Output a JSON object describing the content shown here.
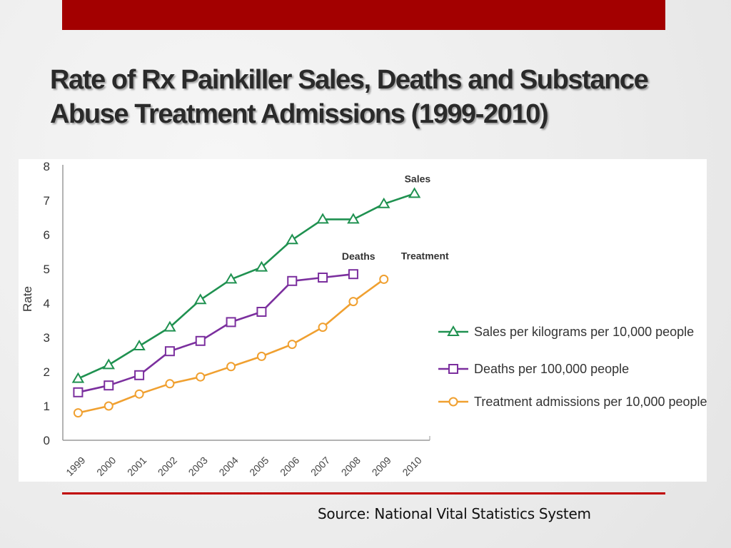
{
  "slide": {
    "title_line1": "Rate of Rx Painkiller Sales, Deaths and Substance",
    "title_line2": "Abuse Treatment Admissions (1999-2010)",
    "source": "Source: National Vital Statistics System"
  },
  "colors": {
    "accent_bar": "#a30000",
    "rule": "#c00000",
    "sales": "#1f9150",
    "deaths": "#7b2f9e",
    "treatment": "#f0a030"
  },
  "chart_data": {
    "type": "line",
    "title": "",
    "xlabel": "",
    "ylabel": "Rate",
    "x": [
      "1999",
      "2000",
      "2001",
      "2002",
      "2003",
      "2004",
      "2005",
      "2006",
      "2007",
      "2008",
      "2009",
      "2010"
    ],
    "ylim": [
      0,
      8
    ],
    "yticks": [
      "0",
      "1",
      "2",
      "3",
      "4",
      "5",
      "6",
      "7",
      "8"
    ],
    "legend_position": "right",
    "series": [
      {
        "key": "sales",
        "name": "Sales per kilograms per 10,000 people",
        "label": "Sales",
        "marker": "triangle",
        "values": [
          1.8,
          2.2,
          2.75,
          3.3,
          4.1,
          4.7,
          5.05,
          5.85,
          6.45,
          6.45,
          6.9,
          7.2
        ]
      },
      {
        "key": "deaths",
        "name": "Deaths per 100,000 people",
        "label": "Deaths",
        "marker": "square",
        "values": [
          1.4,
          1.6,
          1.9,
          2.6,
          2.9,
          3.45,
          3.75,
          4.65,
          4.75,
          4.85,
          null,
          null
        ]
      },
      {
        "key": "treatment",
        "name": "Treatment admissions per 10,000 people",
        "label": "Treatment",
        "marker": "circle",
        "values": [
          0.8,
          1.0,
          1.35,
          1.65,
          1.85,
          2.15,
          2.45,
          2.8,
          3.3,
          4.05,
          4.7,
          null
        ]
      }
    ]
  }
}
